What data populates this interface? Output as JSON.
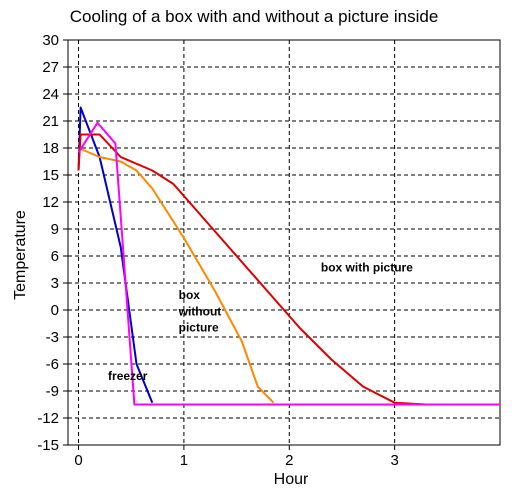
{
  "chart_data": {
    "type": "line",
    "title": "Cooling of a box with and without a picture inside",
    "xlabel": "Hour",
    "ylabel": "Temperature",
    "xlim": [
      -0.1,
      4.0
    ],
    "ylim": [
      -15,
      30
    ],
    "x_ticks": [
      0,
      1,
      2,
      3
    ],
    "y_ticks": [
      -15,
      -12,
      -9,
      -6,
      -3,
      0,
      3,
      6,
      9,
      12,
      15,
      18,
      21,
      24,
      27,
      30
    ],
    "grid": true,
    "series": [
      {
        "name": "freezer",
        "color": "#0000cc",
        "points": [
          [
            0,
            15.5
          ],
          [
            0.02,
            22.5
          ],
          [
            0.2,
            17
          ],
          [
            0.4,
            7
          ],
          [
            0.55,
            -6
          ],
          [
            0.7,
            -10.3
          ]
        ]
      },
      {
        "name": "box without picture",
        "color": "#ff8800",
        "points": [
          [
            0,
            18
          ],
          [
            0.2,
            17
          ],
          [
            0.4,
            16.5
          ],
          [
            0.55,
            15.5
          ],
          [
            0.7,
            13.5
          ],
          [
            1.0,
            8
          ],
          [
            1.3,
            2
          ],
          [
            1.55,
            -3.5
          ],
          [
            1.7,
            -8.5
          ],
          [
            1.85,
            -10.3
          ]
        ]
      },
      {
        "name": "box with picture",
        "color": "#dd0000",
        "points": [
          [
            0,
            15.5
          ],
          [
            0.02,
            19.5
          ],
          [
            0.2,
            19.5
          ],
          [
            0.4,
            17
          ],
          [
            0.7,
            15.5
          ],
          [
            0.9,
            14
          ],
          [
            1.2,
            10
          ],
          [
            1.5,
            6
          ],
          [
            1.8,
            2
          ],
          [
            2.1,
            -2
          ],
          [
            2.4,
            -5.5
          ],
          [
            2.7,
            -8.5
          ],
          [
            3.0,
            -10.3
          ],
          [
            3.3,
            -10.5
          ],
          [
            4.0,
            -10.5
          ]
        ]
      },
      {
        "name": "",
        "color": "#ff00ff",
        "points": [
          [
            0,
            17.5
          ],
          [
            0.18,
            20.8
          ],
          [
            0.35,
            18.5
          ],
          [
            0.53,
            -10.5
          ],
          [
            4.0,
            -10.5
          ]
        ]
      }
    ],
    "annotations": [
      {
        "text": "box with picture",
        "x": 2.3,
        "y": 4.3
      },
      {
        "text": "box",
        "x": 0.95,
        "y": 1.2
      },
      {
        "text": "without",
        "x": 0.95,
        "y": -0.6
      },
      {
        "text": "picture",
        "x": 0.95,
        "y": -2.4
      },
      {
        "text": "freezer",
        "x": 0.28,
        "y": -7.8
      }
    ]
  }
}
